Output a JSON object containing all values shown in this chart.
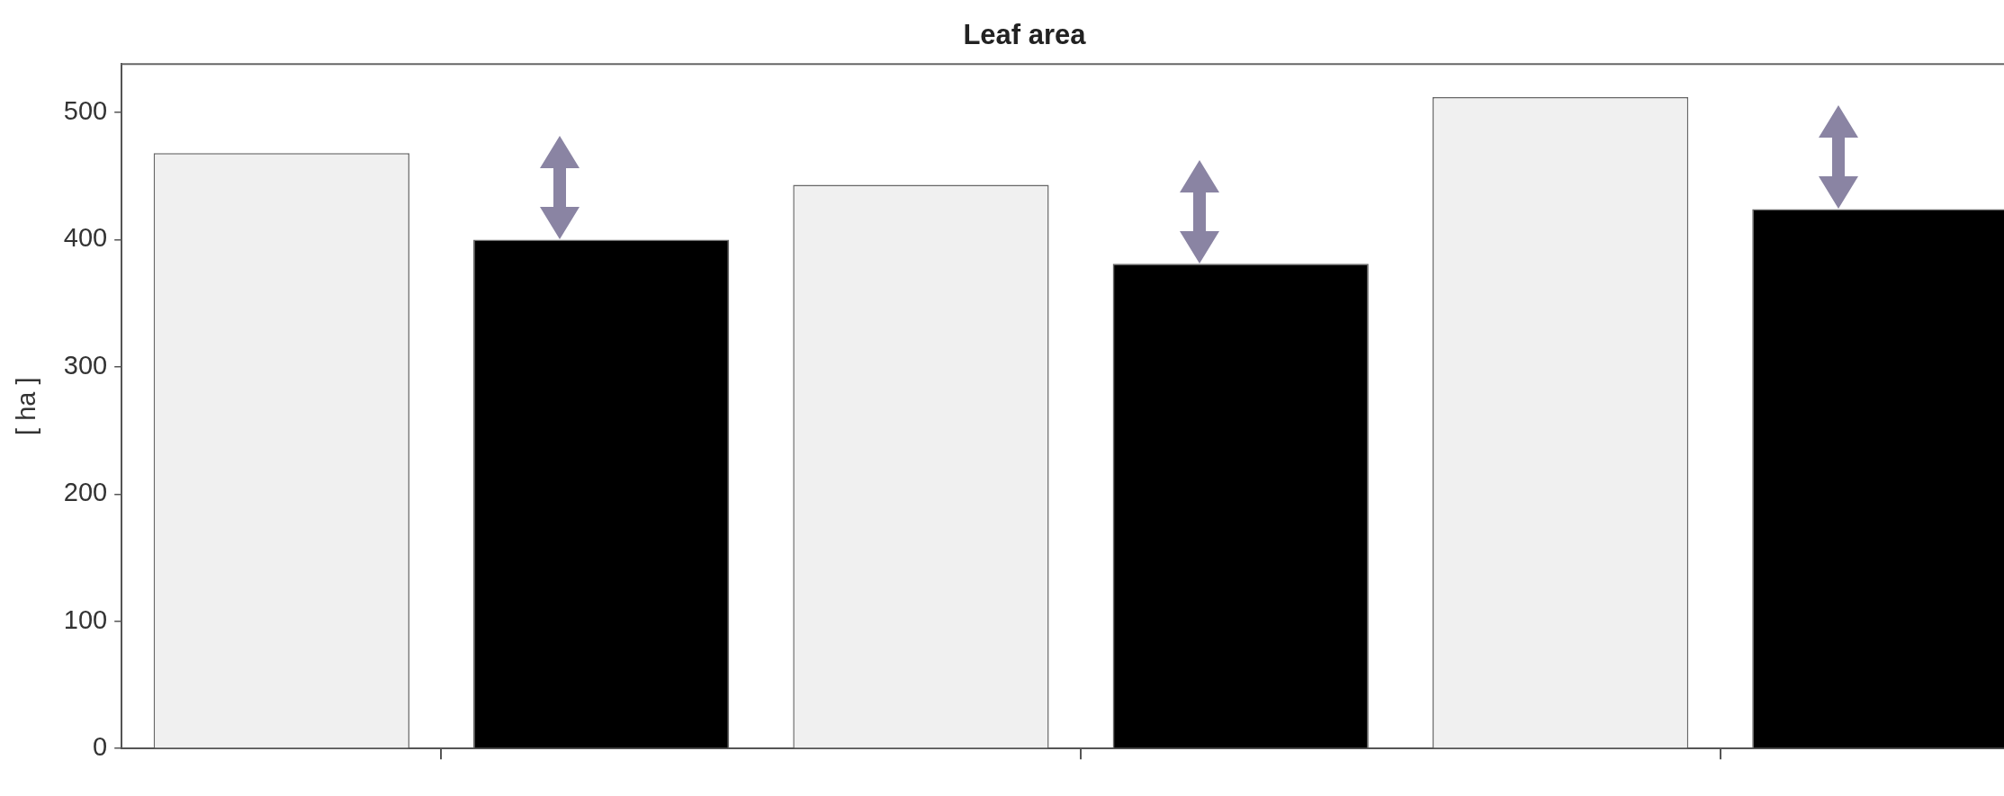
{
  "chart_data": {
    "type": "bar",
    "title": "Leaf area",
    "ylabel": "[ ha ]",
    "categories": [
      null,
      null,
      null
    ],
    "series": [
      {
        "color": "#f0f0f0",
        "values": [
          468,
          443,
          512
        ]
      },
      {
        "color": "#000000",
        "values": [
          400,
          381,
          424
        ]
      }
    ],
    "ylim": [
      0,
      538
    ],
    "yticks": [
      0,
      100,
      200,
      300,
      400,
      500
    ],
    "grid": false,
    "legend": false
  }
}
